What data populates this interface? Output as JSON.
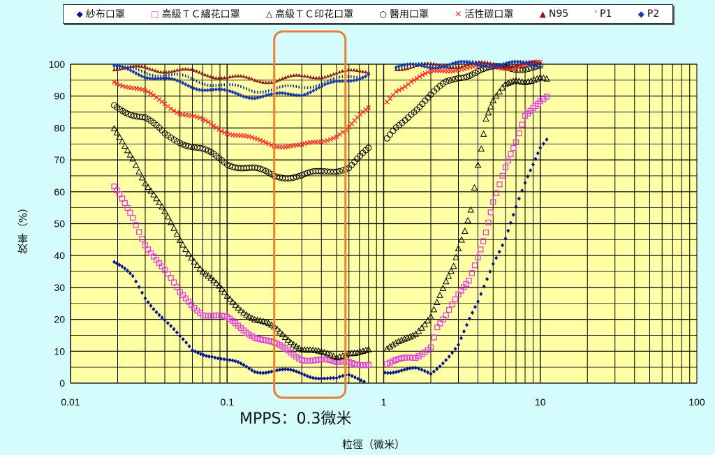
{
  "chart_data": {
    "type": "scatter",
    "title": "",
    "xlabel": "粒徑（微米）",
    "ylabel": "效率（%）",
    "xscale": "log",
    "xlim": [
      0.01,
      100
    ],
    "ylim": [
      0,
      100
    ],
    "xticks": [
      "0.01",
      "0.1",
      "1",
      "10",
      "100"
    ],
    "xtick_values": [
      0.01,
      0.1,
      1,
      10,
      100
    ],
    "yticks": [
      "0",
      "10",
      "20",
      "30",
      "40",
      "50",
      "60",
      "70",
      "80",
      "90",
      "100"
    ],
    "grid": true,
    "legend_position": "top",
    "annotation": {
      "text": "MPPS：0.3微米",
      "x_range": [
        0.2,
        0.57
      ],
      "color": "#ed7d31"
    },
    "plot_bg": "#ffffa6",
    "series": [
      {
        "name": "紗布口罩",
        "marker": "◆",
        "color": "#00128c",
        "left": [
          [
            0.019,
            38
          ],
          [
            0.025,
            33
          ],
          [
            0.03,
            27
          ],
          [
            0.04,
            20
          ],
          [
            0.05,
            14
          ],
          [
            0.06,
            10
          ],
          [
            0.08,
            9
          ],
          [
            0.1,
            7
          ],
          [
            0.15,
            4
          ],
          [
            0.2,
            4
          ],
          [
            0.3,
            3
          ],
          [
            0.4,
            2
          ],
          [
            0.5,
            1
          ],
          [
            0.6,
            2
          ],
          [
            0.75,
            1
          ]
        ],
        "right": [
          [
            1.02,
            4
          ],
          [
            1.3,
            4
          ],
          [
            1.6,
            4
          ],
          [
            2,
            3
          ],
          [
            2.5,
            8
          ],
          [
            3,
            12
          ],
          [
            4,
            25
          ],
          [
            5,
            38
          ],
          [
            6,
            46
          ],
          [
            7,
            55
          ],
          [
            8,
            62
          ],
          [
            9,
            68
          ],
          [
            10,
            74
          ],
          [
            11,
            77
          ]
        ]
      },
      {
        "name": "高級ＴＣ繡花口罩",
        "marker": "□",
        "color": "#e040e0",
        "left": [
          [
            0.019,
            61
          ],
          [
            0.025,
            52
          ],
          [
            0.03,
            44
          ],
          [
            0.04,
            35
          ],
          [
            0.05,
            28
          ],
          [
            0.07,
            22
          ],
          [
            0.1,
            20
          ],
          [
            0.15,
            15
          ],
          [
            0.2,
            12
          ],
          [
            0.3,
            8
          ],
          [
            0.4,
            7
          ],
          [
            0.5,
            6
          ],
          [
            0.6,
            7
          ],
          [
            0.8,
            6
          ]
        ],
        "right": [
          [
            1.05,
            6
          ],
          [
            1.3,
            7
          ],
          [
            1.6,
            8
          ],
          [
            2,
            12
          ],
          [
            2.2,
            18
          ],
          [
            2.5,
            21
          ],
          [
            3,
            27
          ],
          [
            3.5,
            32
          ],
          [
            4,
            40
          ],
          [
            4.5,
            48
          ],
          [
            5,
            57
          ],
          [
            5.5,
            62
          ],
          [
            6,
            67
          ],
          [
            7,
            75
          ],
          [
            8,
            84
          ],
          [
            9,
            87
          ],
          [
            10,
            89
          ],
          [
            11,
            90
          ]
        ]
      },
      {
        "name": "高級ＴＣ印花口罩",
        "marker": "△",
        "color": "#000000",
        "left": [
          [
            0.019,
            79
          ],
          [
            0.025,
            71
          ],
          [
            0.03,
            63
          ],
          [
            0.04,
            53
          ],
          [
            0.05,
            45
          ],
          [
            0.07,
            35
          ],
          [
            0.1,
            27
          ],
          [
            0.15,
            20
          ],
          [
            0.2,
            17
          ],
          [
            0.3,
            11
          ],
          [
            0.4,
            9
          ],
          [
            0.5,
            8
          ],
          [
            0.6,
            10
          ],
          [
            0.8,
            10
          ]
        ],
        "right": [
          [
            1.05,
            10
          ],
          [
            1.3,
            13
          ],
          [
            1.6,
            16
          ],
          [
            2,
            21
          ],
          [
            2.5,
            31
          ],
          [
            2.8,
            36
          ],
          [
            3,
            42
          ],
          [
            3.3,
            48
          ],
          [
            3.6,
            55
          ],
          [
            3.8,
            62
          ],
          [
            4,
            69
          ],
          [
            4.2,
            74
          ],
          [
            4.5,
            83
          ],
          [
            5,
            88
          ],
          [
            6,
            93
          ],
          [
            7,
            95
          ],
          [
            8,
            95
          ],
          [
            10,
            96
          ],
          [
            11,
            95
          ]
        ]
      },
      {
        "name": "醫用口罩",
        "marker": "○",
        "color": "#000000",
        "left": [
          [
            0.019,
            87
          ],
          [
            0.03,
            83
          ],
          [
            0.04,
            78
          ],
          [
            0.05,
            76
          ],
          [
            0.07,
            73
          ],
          [
            0.1,
            69
          ],
          [
            0.15,
            67
          ],
          [
            0.2,
            65
          ],
          [
            0.3,
            65
          ],
          [
            0.4,
            66
          ],
          [
            0.5,
            67
          ],
          [
            0.6,
            68
          ],
          [
            0.8,
            73
          ]
        ],
        "right": [
          [
            1.05,
            76
          ],
          [
            1.2,
            80
          ],
          [
            1.5,
            85
          ],
          [
            2,
            90
          ],
          [
            2.5,
            94
          ],
          [
            3,
            96
          ],
          [
            4,
            98
          ],
          [
            6,
            99
          ],
          [
            10,
            99
          ]
        ]
      },
      {
        "name": "活性碳口罩",
        "marker": "✕",
        "color": "#ff2a2a",
        "left": [
          [
            0.019,
            95
          ],
          [
            0.03,
            91
          ],
          [
            0.04,
            88
          ],
          [
            0.05,
            85
          ],
          [
            0.07,
            82
          ],
          [
            0.1,
            79
          ],
          [
            0.15,
            76
          ],
          [
            0.2,
            75
          ],
          [
            0.3,
            74
          ],
          [
            0.4,
            76
          ],
          [
            0.5,
            78
          ],
          [
            0.6,
            80
          ],
          [
            0.8,
            86
          ]
        ],
        "right": [
          [
            1.05,
            88
          ],
          [
            1.2,
            92
          ],
          [
            1.5,
            95
          ],
          [
            2,
            97
          ],
          [
            3,
            99
          ],
          [
            5,
            99
          ],
          [
            10,
            100
          ]
        ]
      },
      {
        "name": "N95",
        "marker": "▲",
        "color": "#8b1a1a",
        "left": [
          [
            0.019,
            99
          ],
          [
            0.05,
            98
          ],
          [
            0.1,
            96
          ],
          [
            0.15,
            95
          ],
          [
            0.2,
            95
          ],
          [
            0.3,
            96
          ],
          [
            0.5,
            97
          ],
          [
            0.8,
            98
          ]
        ],
        "right": [
          [
            1.2,
            99
          ],
          [
            2,
            99.5
          ],
          [
            5,
            100
          ],
          [
            10,
            100
          ]
        ]
      },
      {
        "name": "P1",
        "marker": "'",
        "color": "#0a2a9c",
        "left": [
          [
            0.019,
            99
          ],
          [
            0.05,
            96
          ],
          [
            0.1,
            93
          ],
          [
            0.15,
            92
          ],
          [
            0.2,
            92
          ],
          [
            0.3,
            93
          ],
          [
            0.5,
            95
          ],
          [
            0.8,
            97
          ]
        ],
        "right": [
          [
            1.2,
            99
          ],
          [
            3,
            100
          ],
          [
            10,
            100
          ]
        ]
      },
      {
        "name": "P2",
        "marker": "◆",
        "color": "#1a3aa8",
        "left": [
          [
            0.019,
            99
          ],
          [
            0.05,
            94
          ],
          [
            0.1,
            91
          ],
          [
            0.15,
            90
          ],
          [
            0.2,
            90
          ],
          [
            0.3,
            91
          ],
          [
            0.5,
            94
          ],
          [
            0.8,
            97
          ]
        ],
        "right": [
          [
            1.2,
            99
          ],
          [
            3,
            100
          ],
          [
            10,
            100
          ]
        ]
      }
    ]
  }
}
